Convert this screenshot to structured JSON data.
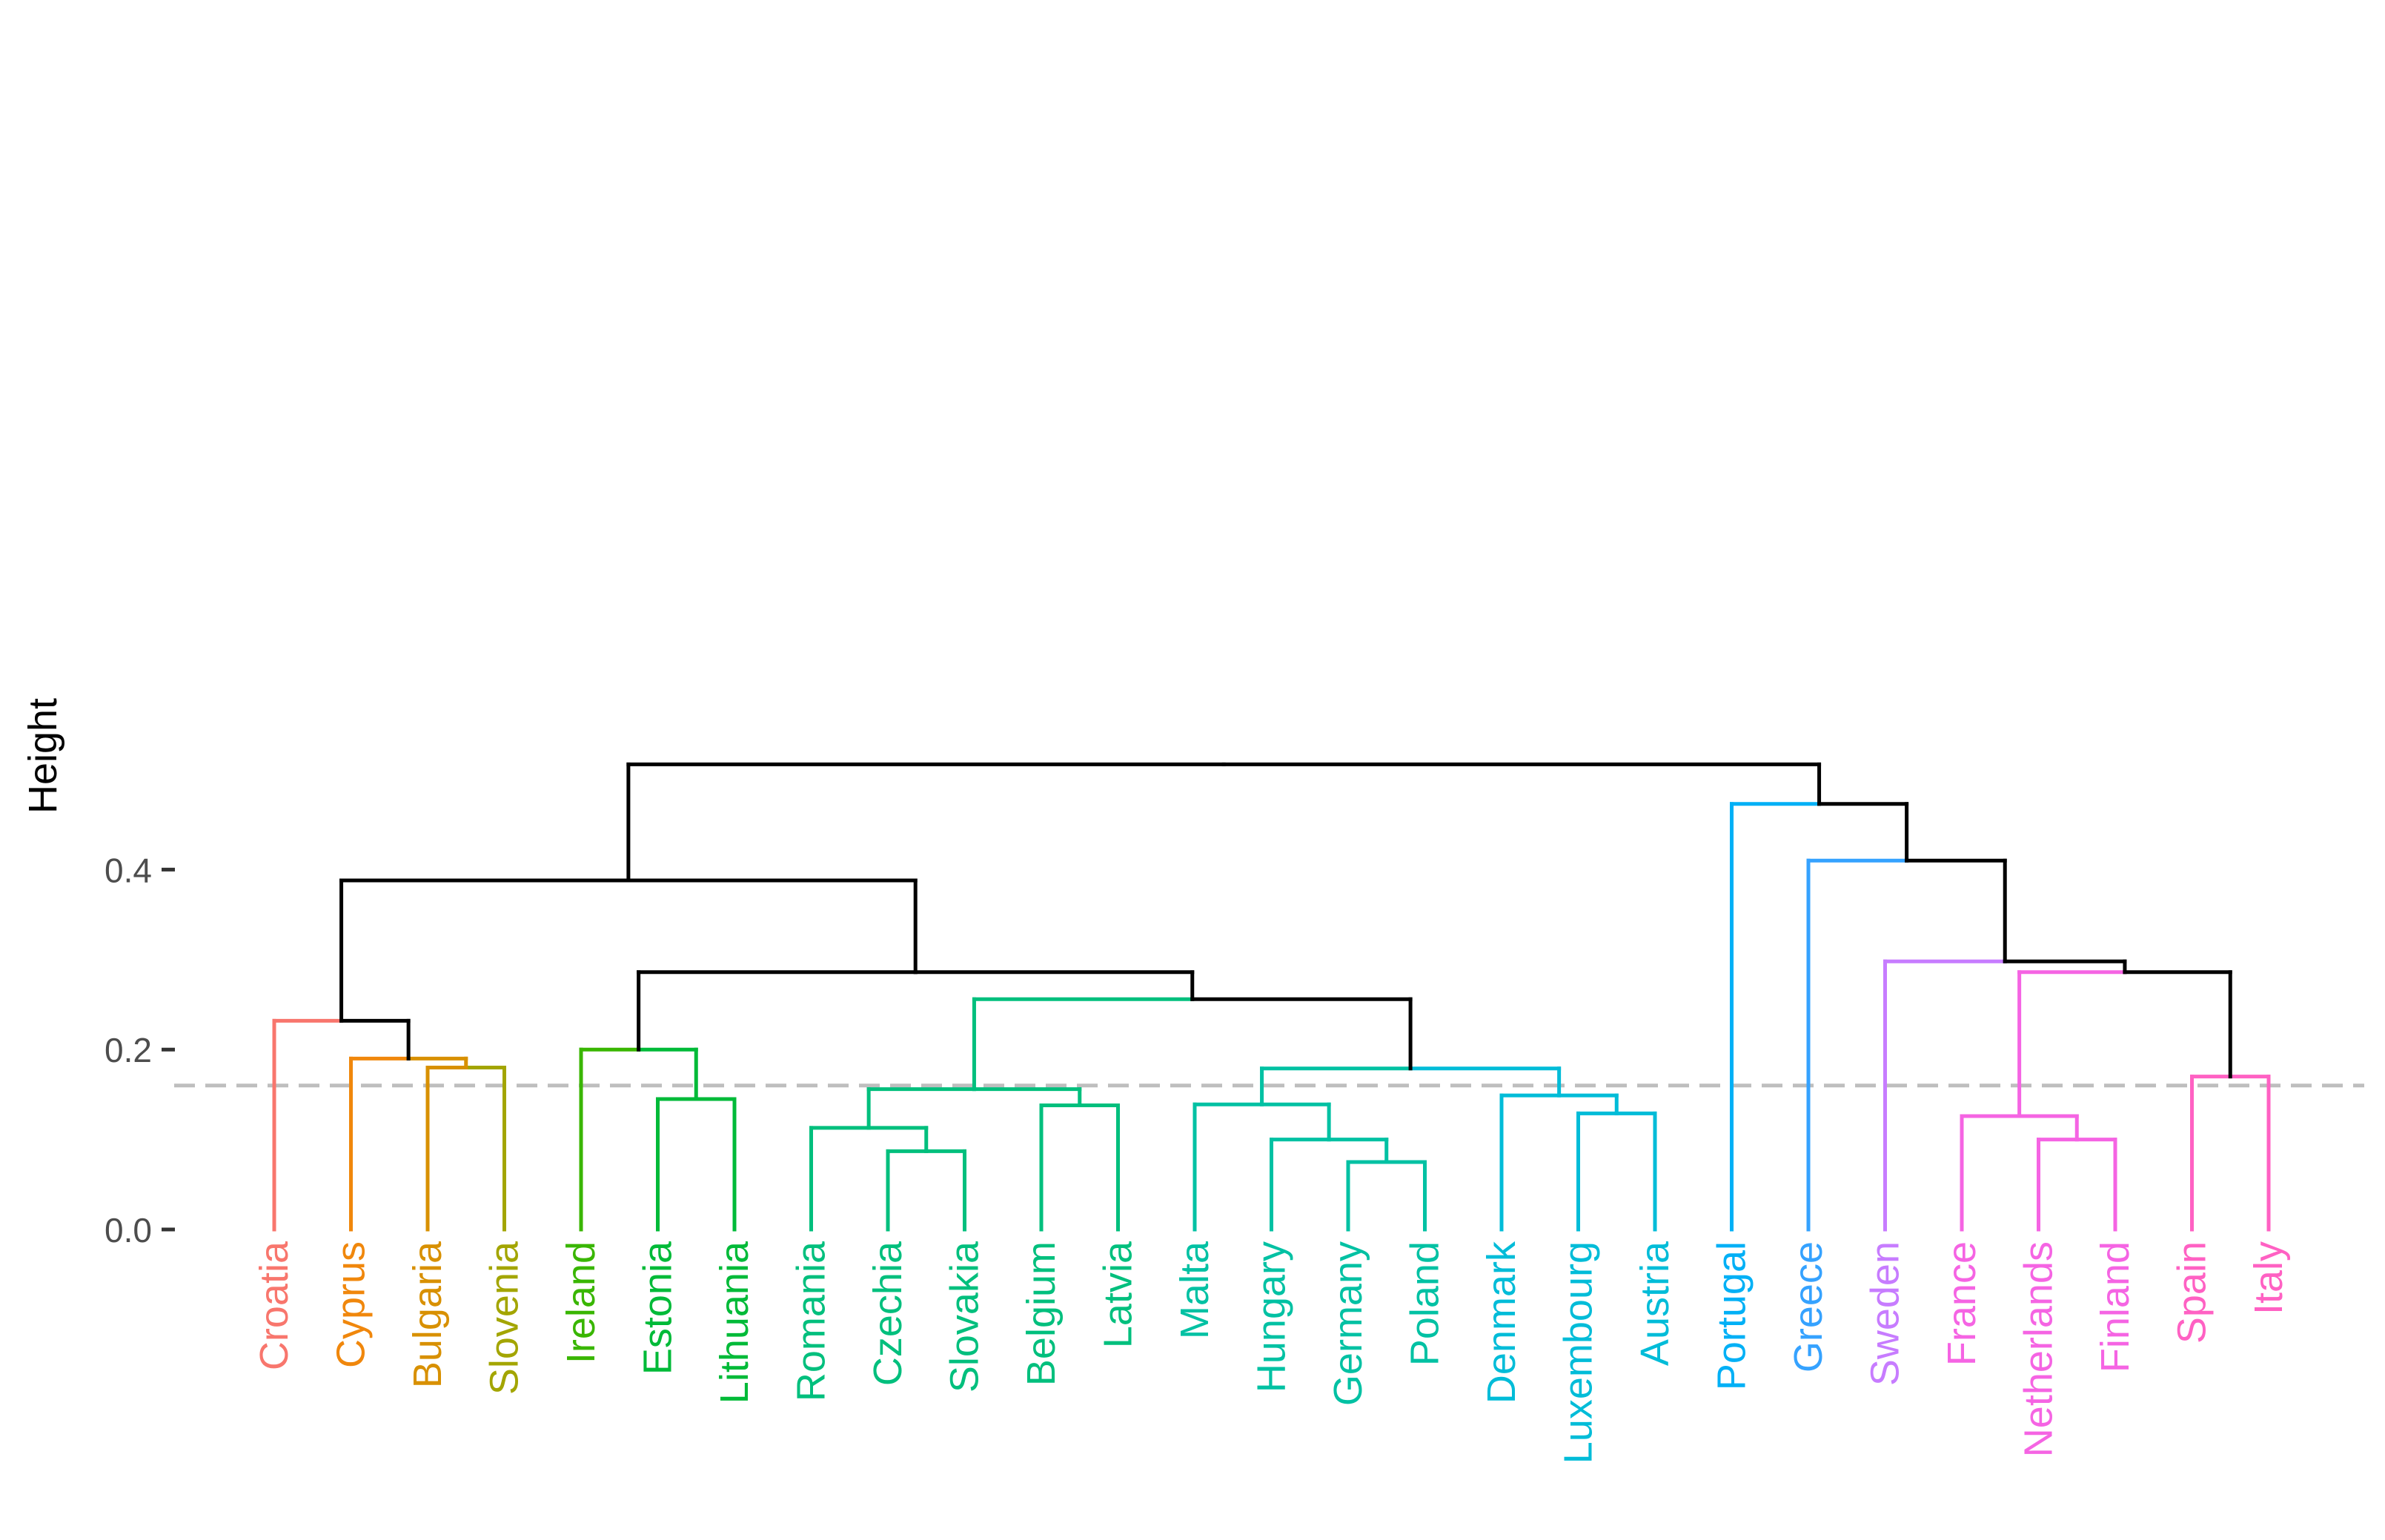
{
  "chart_data": {
    "type": "dendrogram",
    "title": "",
    "xlabel": "",
    "ylabel": "Height",
    "ylim": [
      0,
      0.52
    ],
    "y_ticks": [
      {
        "value": 0.0,
        "label": "0.0"
      },
      {
        "value": 0.2,
        "label": "0.2"
      },
      {
        "value": 0.4,
        "label": "0.4"
      }
    ],
    "cut_height": 0.16,
    "leaves": [
      {
        "label": "Croatia",
        "color": "#F8766D"
      },
      {
        "label": "Cyprus",
        "color": "#F0870C"
      },
      {
        "label": "Bulgaria",
        "color": "#D89000"
      },
      {
        "label": "Slovenia",
        "color": "#A3A500"
      },
      {
        "label": "Ireland",
        "color": "#39B600"
      },
      {
        "label": "Estonia",
        "color": "#00BA38"
      },
      {
        "label": "Lithuania",
        "color": "#00BA38"
      },
      {
        "label": "Romania",
        "color": "#00BF7D"
      },
      {
        "label": "Czechia",
        "color": "#00BF7D"
      },
      {
        "label": "Slovakia",
        "color": "#00BF7D"
      },
      {
        "label": "Belgium",
        "color": "#00BF7D"
      },
      {
        "label": "Latvia",
        "color": "#00BF7D"
      },
      {
        "label": "Malta",
        "color": "#00C1A3"
      },
      {
        "label": "Hungary",
        "color": "#00C1A3"
      },
      {
        "label": "Germany",
        "color": "#00C1A3"
      },
      {
        "label": "Poland",
        "color": "#00C1A3"
      },
      {
        "label": "Denmark",
        "color": "#00BCD8"
      },
      {
        "label": "Luxembourg",
        "color": "#00BCD8"
      },
      {
        "label": "Austria",
        "color": "#00BCD8"
      },
      {
        "label": "Portugal",
        "color": "#00B0F6"
      },
      {
        "label": "Greece",
        "color": "#35A2FF"
      },
      {
        "label": "Sweden",
        "color": "#C77CFF"
      },
      {
        "label": "France",
        "color": "#F564E3"
      },
      {
        "label": "Netherlands",
        "color": "#F564E3"
      },
      {
        "label": "Finland",
        "color": "#F564E3"
      },
      {
        "label": "Spain",
        "color": "#FF61C3"
      },
      {
        "label": "Italy",
        "color": "#FF61C3"
      }
    ],
    "merges": [
      {
        "id": "bg",
        "left": "Bulgaria",
        "right": "Slovenia",
        "height": 0.18,
        "color": "#A3A500"
      },
      {
        "id": "cbg",
        "left": "Cyprus",
        "right": "bg",
        "height": 0.19,
        "color": "#F0870C"
      },
      {
        "id": "A",
        "left": "Croatia",
        "right": "cbg",
        "height": 0.232,
        "color": "#000000"
      },
      {
        "id": "el",
        "left": "Estonia",
        "right": "Lithuania",
        "height": 0.145,
        "color": "#00BA38"
      },
      {
        "id": "B",
        "left": "Ireland",
        "right": "el",
        "height": 0.2,
        "color": "#39B600"
      },
      {
        "id": "cs",
        "left": "Czechia",
        "right": "Slovakia",
        "height": 0.087,
        "color": "#00BF7D"
      },
      {
        "id": "rcs",
        "left": "Romania",
        "right": "cs",
        "height": 0.113,
        "color": "#00BF7D"
      },
      {
        "id": "bl",
        "left": "Belgium",
        "right": "Latvia",
        "height": 0.138,
        "color": "#00BF7D"
      },
      {
        "id": "C",
        "left": "rcs",
        "right": "bl",
        "height": 0.156,
        "color": "#00BF7D"
      },
      {
        "id": "gp",
        "left": "Germany",
        "right": "Poland",
        "height": 0.075,
        "color": "#00C1A3"
      },
      {
        "id": "hgp",
        "left": "Hungary",
        "right": "gp",
        "height": 0.1,
        "color": "#00C1A3"
      },
      {
        "id": "mhgp",
        "left": "Malta",
        "right": "hgp",
        "height": 0.139,
        "color": "#00C1A3"
      },
      {
        "id": "la",
        "left": "Luxembourg",
        "right": "Austria",
        "height": 0.129,
        "color": "#00BCD8"
      },
      {
        "id": "dla",
        "left": "Denmark",
        "right": "la",
        "height": 0.149,
        "color": "#00BCD8"
      },
      {
        "id": "D",
        "left": "mhgp",
        "right": "dla",
        "height": 0.179,
        "color": "#00C1A3"
      },
      {
        "id": "CD",
        "left": "C",
        "right": "D",
        "height": 0.256,
        "color": "#000000"
      },
      {
        "id": "BCD",
        "left": "B",
        "right": "CD",
        "height": 0.286,
        "color": "#000000"
      },
      {
        "id": "L",
        "left": "A",
        "right": "BCD",
        "height": 0.388,
        "color": "#000000"
      },
      {
        "id": "nf",
        "left": "Netherlands",
        "right": "Finland",
        "height": 0.1,
        "color": "#F564E3"
      },
      {
        "id": "fnf",
        "left": "France",
        "right": "nf",
        "height": 0.126,
        "color": "#F564E3"
      },
      {
        "id": "si",
        "left": "Spain",
        "right": "Italy",
        "height": 0.17,
        "color": "#FF61C3"
      },
      {
        "id": "E",
        "left": "fnf",
        "right": "si",
        "height": 0.286,
        "color": "#000000"
      },
      {
        "id": "SE",
        "left": "Sweden",
        "right": "E",
        "height": 0.298,
        "color": "#000000"
      },
      {
        "id": "GSE",
        "left": "Greece",
        "right": "SE",
        "height": 0.41,
        "color": "#000000"
      },
      {
        "id": "R",
        "left": "Portugal",
        "right": "GSE",
        "height": 0.473,
        "color": "#000000"
      },
      {
        "id": "root",
        "left": "L",
        "right": "R",
        "height": 0.517,
        "color": "#000000"
      }
    ],
    "link_colors": {
      "Croatia": "#F8766D",
      "Bulgaria-Slovenia-to-Cyprus": "#D89000",
      "Portugal": "#00B0F6",
      "Greece": "#35A2FF",
      "Sweden": "#C77CFF",
      "fnf-to-E": "#F564E3"
    },
    "colors": {
      "axis_text": "#4D4D4D",
      "axis_title": "#000000",
      "cut_line": "#BEBEBE",
      "background": "#FFFFFF"
    }
  }
}
